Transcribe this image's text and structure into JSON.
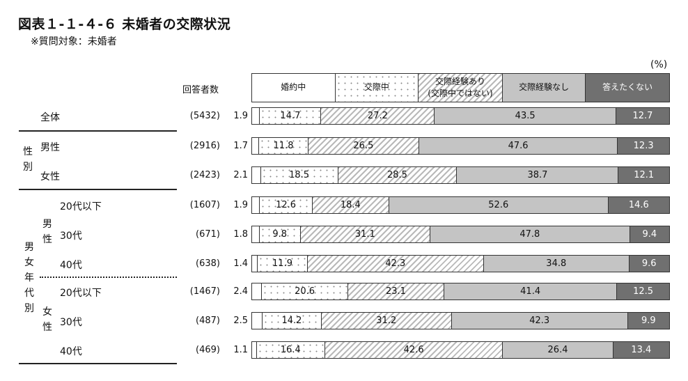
{
  "title": "図表１-１-４-６ 未婚者の交際状況",
  "subtitle": "※質問対象：未婚者",
  "unit_label": "(%)",
  "respondents_header": "回答者数",
  "legend": [
    "婚約中",
    "交際中",
    "交際経験あり\n(交際中ではない)",
    "交際経験なし",
    "答えたくない"
  ],
  "groups": {
    "sex": "性別",
    "sex_age": "男女年代別",
    "male": "男性",
    "female": "女性"
  },
  "chart_data": {
    "type": "bar",
    "orientation": "horizontal",
    "stacked": true,
    "normalized_percent": true,
    "title": "図表１-１-４-６ 未婚者の交際状況",
    "series": [
      {
        "name": "婚約中",
        "values": [
          1.9,
          1.7,
          2.1,
          1.9,
          1.8,
          1.4,
          2.4,
          2.5,
          1.1
        ]
      },
      {
        "name": "交際中",
        "values": [
          14.7,
          11.8,
          18.5,
          12.6,
          9.8,
          11.9,
          20.6,
          14.2,
          16.4
        ]
      },
      {
        "name": "交際経験あり(交際中ではない)",
        "values": [
          27.2,
          26.5,
          28.5,
          18.4,
          31.1,
          42.3,
          23.1,
          31.2,
          42.6
        ]
      },
      {
        "name": "交際経験なし",
        "values": [
          43.5,
          47.6,
          38.7,
          52.6,
          47.8,
          34.8,
          41.4,
          42.3,
          26.4
        ]
      },
      {
        "name": "答えたくない",
        "values": [
          12.7,
          12.3,
          12.1,
          14.6,
          9.4,
          9.6,
          12.5,
          9.9,
          13.4
        ]
      }
    ],
    "categories": [
      "全体",
      "男性",
      "女性",
      "20代以下",
      "30代",
      "40代",
      "20代以下",
      "30代",
      "40代"
    ],
    "respondents": [
      "(5432)",
      "(2916)",
      "(2423)",
      "(1607)",
      "(671)",
      "(638)",
      "(1467)",
      "(487)",
      "(469)"
    ],
    "xlim": [
      0,
      100
    ],
    "legend_position": "top"
  }
}
